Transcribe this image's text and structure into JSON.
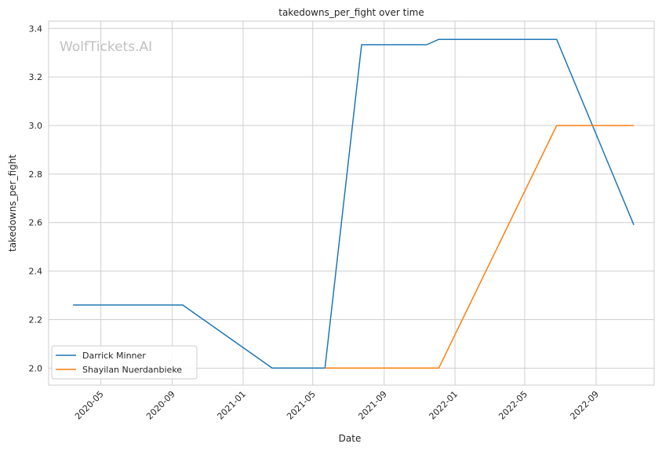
{
  "watermark": "WolfTickets.AI",
  "chart_data": {
    "type": "line",
    "title": "takedowns_per_fight over time",
    "xlabel": "Date",
    "ylabel": "takedowns_per_fight",
    "xlim": [
      "2020-02-01",
      "2022-12-10"
    ],
    "ylim": [
      1.93,
      3.43
    ],
    "x_ticks": [
      "2020-05-01",
      "2020-09-01",
      "2021-01-01",
      "2021-05-01",
      "2021-09-01",
      "2022-01-01",
      "2022-05-01",
      "2022-09-01"
    ],
    "x_tick_labels": [
      "2020-05",
      "2020-09",
      "2021-01",
      "2021-05",
      "2021-09",
      "2022-01",
      "2022-05",
      "2022-09"
    ],
    "y_ticks": [
      2.0,
      2.2,
      2.4,
      2.6,
      2.8,
      3.0,
      3.2,
      3.4
    ],
    "y_tick_labels": [
      "2.0",
      "2.2",
      "2.4",
      "2.6",
      "2.8",
      "3.0",
      "3.2",
      "3.4"
    ],
    "grid": true,
    "legend_position": "lower-left",
    "series": [
      {
        "name": "Darrick Minner",
        "color": "#1f77b4",
        "points": [
          [
            "2020-03-14",
            2.26
          ],
          [
            "2020-09-19",
            2.26
          ],
          [
            "2021-02-20",
            2.0
          ],
          [
            "2021-05-22",
            2.0
          ],
          [
            "2021-07-24",
            3.333
          ],
          [
            "2021-11-13",
            3.333
          ],
          [
            "2021-12-04",
            3.355
          ],
          [
            "2022-06-25",
            3.355
          ],
          [
            "2022-11-05",
            2.59
          ]
        ]
      },
      {
        "name": "Shayilan Nuerdanbieke",
        "color": "#ff7f0e",
        "points": [
          [
            "2021-05-22",
            2.0
          ],
          [
            "2021-12-04",
            2.0
          ],
          [
            "2022-06-25",
            3.0
          ],
          [
            "2022-11-05",
            3.0
          ]
        ]
      }
    ]
  }
}
